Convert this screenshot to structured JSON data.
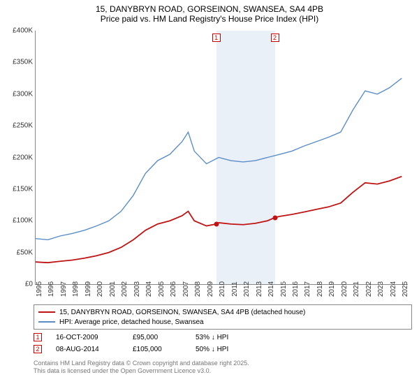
{
  "title": {
    "line1": "15, DANYBRYN ROAD, GORSEINON, SWANSEA, SA4 4PB",
    "line2": "Price paid vs. HM Land Registry's House Price Index (HPI)"
  },
  "chart": {
    "type": "line",
    "xlim": [
      1995,
      2025.5
    ],
    "ylim": [
      0,
      400
    ],
    "ytick_step": 50,
    "y_prefix": "£",
    "y_suffix": "K",
    "xticks": [
      1995,
      1996,
      1997,
      1998,
      1999,
      2000,
      2001,
      2002,
      2003,
      2004,
      2005,
      2006,
      2007,
      2008,
      2009,
      2010,
      2011,
      2012,
      2013,
      2014,
      2015,
      2016,
      2017,
      2018,
      2019,
      2020,
      2021,
      2022,
      2023,
      2024,
      2025
    ],
    "background_color": "#ffffff",
    "grid": false,
    "series": [
      {
        "name": "hpi",
        "label": "HPI: Average price, detached house, Swansea",
        "color": "#5a8dc8",
        "width": 1.4,
        "data": [
          [
            1995,
            72
          ],
          [
            1996,
            70
          ],
          [
            1997,
            76
          ],
          [
            1998,
            80
          ],
          [
            1999,
            85
          ],
          [
            2000,
            92
          ],
          [
            2001,
            100
          ],
          [
            2002,
            115
          ],
          [
            2003,
            140
          ],
          [
            2004,
            175
          ],
          [
            2005,
            195
          ],
          [
            2006,
            205
          ],
          [
            2007,
            225
          ],
          [
            2007.5,
            240
          ],
          [
            2008,
            210
          ],
          [
            2009,
            190
          ],
          [
            2010,
            200
          ],
          [
            2011,
            195
          ],
          [
            2012,
            193
          ],
          [
            2013,
            195
          ],
          [
            2014,
            200
          ],
          [
            2015,
            205
          ],
          [
            2016,
            210
          ],
          [
            2017,
            218
          ],
          [
            2018,
            225
          ],
          [
            2019,
            232
          ],
          [
            2020,
            240
          ],
          [
            2021,
            275
          ],
          [
            2022,
            305
          ],
          [
            2023,
            300
          ],
          [
            2024,
            310
          ],
          [
            2025,
            325
          ]
        ]
      },
      {
        "name": "property",
        "label": "15, DANYBRYN ROAD, GORSEINON, SWANSEA, SA4 4PB (detached house)",
        "color": "#c01314",
        "width": 1.8,
        "data": [
          [
            1995,
            35
          ],
          [
            1996,
            34
          ],
          [
            1997,
            36
          ],
          [
            1998,
            38
          ],
          [
            1999,
            41
          ],
          [
            2000,
            45
          ],
          [
            2001,
            50
          ],
          [
            2002,
            58
          ],
          [
            2003,
            70
          ],
          [
            2004,
            85
          ],
          [
            2005,
            95
          ],
          [
            2006,
            100
          ],
          [
            2007,
            108
          ],
          [
            2007.5,
            115
          ],
          [
            2008,
            100
          ],
          [
            2009,
            92
          ],
          [
            2009.8,
            95
          ],
          [
            2010,
            97
          ],
          [
            2011,
            95
          ],
          [
            2012,
            94
          ],
          [
            2013,
            96
          ],
          [
            2014,
            100
          ],
          [
            2014.6,
            105
          ],
          [
            2015,
            107
          ],
          [
            2016,
            110
          ],
          [
            2017,
            114
          ],
          [
            2018,
            118
          ],
          [
            2019,
            122
          ],
          [
            2020,
            128
          ],
          [
            2021,
            145
          ],
          [
            2022,
            160
          ],
          [
            2023,
            158
          ],
          [
            2024,
            163
          ],
          [
            2025,
            170
          ]
        ]
      }
    ],
    "shaded": [
      {
        "x_start": 2009.8,
        "x_end": 2014.6,
        "color": "#e8eef6"
      }
    ],
    "markers": [
      {
        "id": "1",
        "x": 2009.8,
        "y": 95,
        "color": "#c01314"
      },
      {
        "id": "2",
        "x": 2014.6,
        "y": 105,
        "color": "#c01314"
      }
    ]
  },
  "legend": {
    "rows": [
      {
        "color": "#c01314",
        "width": 2,
        "label": "15, DANYBRYN ROAD, GORSEINON, SWANSEA, SA4 4PB (detached house)"
      },
      {
        "color": "#5a8dc8",
        "width": 1.4,
        "label": "HPI: Average price, detached house, Swansea"
      }
    ]
  },
  "sales": [
    {
      "id": "1",
      "date": "16-OCT-2009",
      "price": "£95,000",
      "delta": "53% ↓ HPI"
    },
    {
      "id": "2",
      "date": "08-AUG-2014",
      "price": "£105,000",
      "delta": "50% ↓ HPI"
    }
  ],
  "attribution": {
    "line1": "Contains HM Land Registry data © Crown copyright and database right 2025.",
    "line2": "This data is licensed under the Open Government Licence v3.0."
  }
}
